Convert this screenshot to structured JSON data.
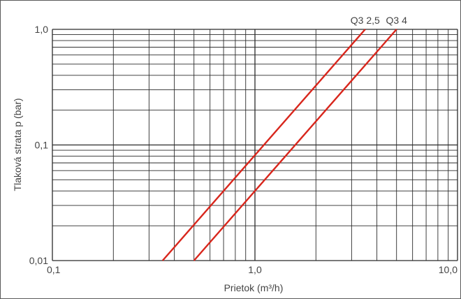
{
  "chart_data": {
    "type": "line",
    "title": "",
    "xlabel": "Prietok (m³/h)",
    "ylabel": "Tlaková strata p (bar)",
    "x_scale": "log",
    "y_scale": "log",
    "xlim": [
      0.1,
      10.0
    ],
    "ylim": [
      0.01,
      1.0
    ],
    "x_tick_labels": [
      "0,1",
      "1,0",
      "10,0"
    ],
    "x_tick_values": [
      0.1,
      1.0,
      10.0
    ],
    "y_tick_labels": [
      "0,01",
      "0,1",
      "1,0"
    ],
    "y_tick_values": [
      0.01,
      0.1,
      1.0
    ],
    "grid": true,
    "line_color": "#d8261c",
    "grid_color": "#2a2a2a",
    "series": [
      {
        "name": "Q3 2,5",
        "x": [
          0.35,
          3.5
        ],
        "y": [
          0.01,
          1.0
        ]
      },
      {
        "name": "Q3 4",
        "x": [
          0.5,
          5.0
        ],
        "y": [
          0.01,
          1.0
        ]
      }
    ]
  }
}
